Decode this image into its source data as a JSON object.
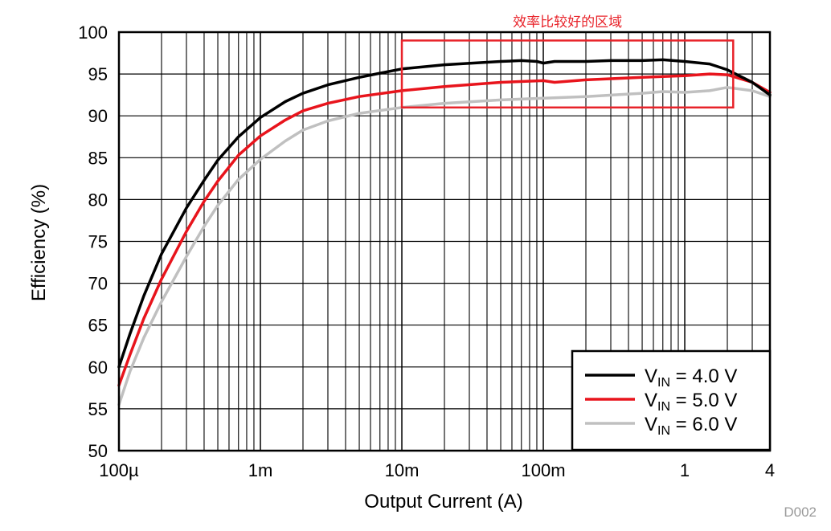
{
  "chart_data": {
    "type": "line",
    "title": "",
    "xlabel": "Output Current (A)",
    "ylabel": "Efficiency (%)",
    "xscale": "log",
    "xlim": [
      0.0001,
      4
    ],
    "ylim": [
      50,
      100
    ],
    "x_ticks": [
      {
        "value": 0.0001,
        "label": "100µ"
      },
      {
        "value": 0.001,
        "label": "1m"
      },
      {
        "value": 0.01,
        "label": "10m"
      },
      {
        "value": 0.1,
        "label": "100m"
      },
      {
        "value": 1,
        "label": "1"
      },
      {
        "value": 4,
        "label": "4"
      }
    ],
    "y_ticks": [
      50,
      55,
      60,
      65,
      70,
      75,
      80,
      85,
      90,
      95,
      100
    ],
    "grid": true,
    "legend_position": "bottom-right",
    "series": [
      {
        "name": "VIN = 4.0 V",
        "prefix": "V",
        "subscript": "IN",
        "suffix": " = 4.0 V",
        "color": "#000000",
        "points": [
          [
            0.0001,
            60
          ],
          [
            0.00012,
            64
          ],
          [
            0.00015,
            68.5
          ],
          [
            0.0002,
            73.5
          ],
          [
            0.0003,
            79
          ],
          [
            0.0004,
            82.3
          ],
          [
            0.0005,
            84.7
          ],
          [
            0.0007,
            87.5
          ],
          [
            0.001,
            89.8
          ],
          [
            0.0015,
            91.7
          ],
          [
            0.002,
            92.7
          ],
          [
            0.003,
            93.7
          ],
          [
            0.005,
            94.6
          ],
          [
            0.007,
            95.1
          ],
          [
            0.01,
            95.6
          ],
          [
            0.02,
            96.1
          ],
          [
            0.05,
            96.5
          ],
          [
            0.07,
            96.6
          ],
          [
            0.09,
            96.5
          ],
          [
            0.1,
            96.3
          ],
          [
            0.12,
            96.5
          ],
          [
            0.2,
            96.5
          ],
          [
            0.3,
            96.6
          ],
          [
            0.5,
            96.6
          ],
          [
            0.7,
            96.7
          ],
          [
            1,
            96.5
          ],
          [
            1.5,
            96.2
          ],
          [
            2,
            95.5
          ],
          [
            3,
            94
          ],
          [
            4,
            92.5
          ]
        ]
      },
      {
        "name": "VIN = 5.0 V",
        "prefix": "V",
        "subscript": "IN",
        "suffix": " = 5.0 V",
        "color": "#e8141c",
        "points": [
          [
            0.0001,
            57.8
          ],
          [
            0.00012,
            61.5
          ],
          [
            0.00015,
            65.8
          ],
          [
            0.0002,
            70.5
          ],
          [
            0.0003,
            76.2
          ],
          [
            0.0004,
            79.8
          ],
          [
            0.0005,
            82.2
          ],
          [
            0.0007,
            85.3
          ],
          [
            0.001,
            87.6
          ],
          [
            0.0015,
            89.5
          ],
          [
            0.002,
            90.6
          ],
          [
            0.003,
            91.5
          ],
          [
            0.005,
            92.3
          ],
          [
            0.01,
            93.0
          ],
          [
            0.02,
            93.5
          ],
          [
            0.05,
            94.0
          ],
          [
            0.1,
            94.2
          ],
          [
            0.12,
            94.0
          ],
          [
            0.2,
            94.3
          ],
          [
            0.5,
            94.6
          ],
          [
            0.7,
            94.7
          ],
          [
            1,
            94.8
          ],
          [
            1.5,
            95.0
          ],
          [
            2,
            94.9
          ],
          [
            3,
            94.0
          ],
          [
            4,
            92.8
          ]
        ]
      },
      {
        "name": "VIN = 6.0 V",
        "prefix": "V",
        "subscript": "IN",
        "suffix": " = 6.0 V",
        "color": "#c0c0c0",
        "points": [
          [
            0.0001,
            55.5
          ],
          [
            0.00012,
            59.5
          ],
          [
            0.00015,
            63.5
          ],
          [
            0.0002,
            67.8
          ],
          [
            0.0003,
            73.2
          ],
          [
            0.0004,
            76.8
          ],
          [
            0.0005,
            79.3
          ],
          [
            0.0007,
            82.4
          ],
          [
            0.001,
            84.8
          ],
          [
            0.0015,
            87.0
          ],
          [
            0.002,
            88.3
          ],
          [
            0.003,
            89.4
          ],
          [
            0.005,
            90.3
          ],
          [
            0.01,
            91.0
          ],
          [
            0.02,
            91.5
          ],
          [
            0.05,
            91.9
          ],
          [
            0.1,
            92.1
          ],
          [
            0.2,
            92.3
          ],
          [
            0.5,
            92.7
          ],
          [
            0.7,
            92.9
          ],
          [
            1,
            92.8
          ],
          [
            1.5,
            93.0
          ],
          [
            2,
            93.4
          ],
          [
            3,
            93.0
          ],
          [
            4,
            92.3
          ]
        ]
      }
    ],
    "annotation": {
      "text": "效率比较好的区域",
      "color": "#e8232a",
      "x_range": [
        0.01,
        2.2
      ],
      "y_range": [
        91,
        99
      ]
    },
    "figure_id": "D002"
  }
}
